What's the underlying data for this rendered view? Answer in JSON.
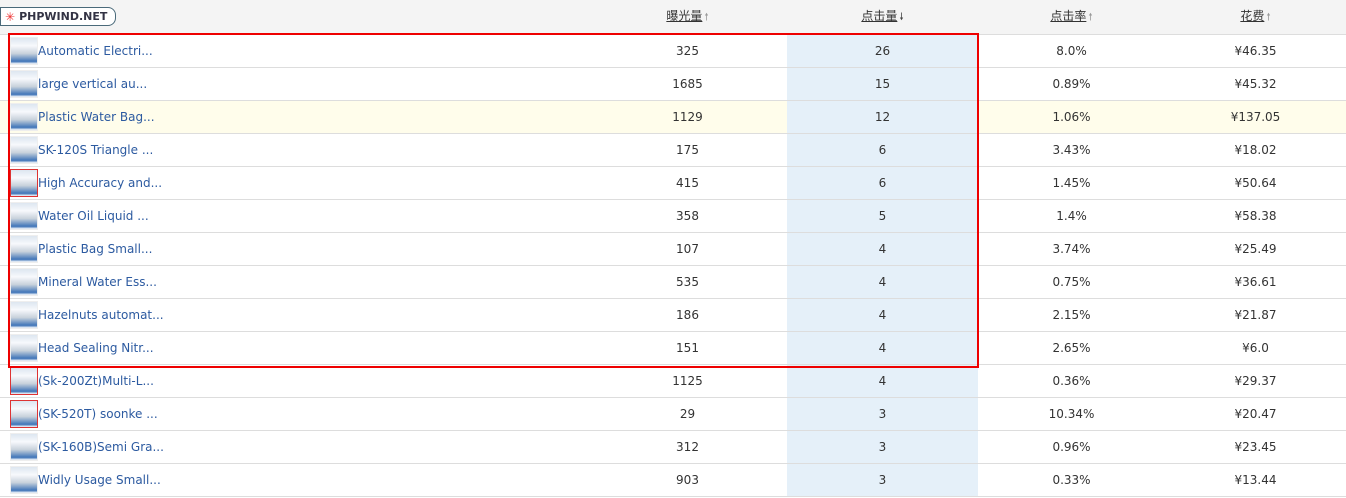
{
  "logo": {
    "text": "PHPWIND.NET",
    "icon": "asterisk-icon"
  },
  "headers": [
    {
      "label": "曝光量",
      "sort": "up"
    },
    {
      "label": "点击量",
      "sort": "down"
    },
    {
      "label": "点击率",
      "sort": "up"
    },
    {
      "label": "花费",
      "sort": "up"
    }
  ],
  "rows": [
    {
      "name": "Automatic Electri...",
      "imp": "325",
      "clicks": "26",
      "ctr": "8.0%",
      "cost": "¥46.35"
    },
    {
      "name": "large vertical au...",
      "imp": "1685",
      "clicks": "15",
      "ctr": "0.89%",
      "cost": "¥45.32"
    },
    {
      "name": "Plastic Water Bag...",
      "imp": "1129",
      "clicks": "12",
      "ctr": "1.06%",
      "cost": "¥137.05"
    },
    {
      "name": "SK-120S Triangle ...",
      "imp": "175",
      "clicks": "6",
      "ctr": "3.43%",
      "cost": "¥18.02"
    },
    {
      "name": "High Accuracy and...",
      "imp": "415",
      "clicks": "6",
      "ctr": "1.45%",
      "cost": "¥50.64"
    },
    {
      "name": "Water Oil Liquid ...",
      "imp": "358",
      "clicks": "5",
      "ctr": "1.4%",
      "cost": "¥58.38"
    },
    {
      "name": "Plastic Bag Small...",
      "imp": "107",
      "clicks": "4",
      "ctr": "3.74%",
      "cost": "¥25.49"
    },
    {
      "name": "Mineral Water Ess...",
      "imp": "535",
      "clicks": "4",
      "ctr": "0.75%",
      "cost": "¥36.61"
    },
    {
      "name": "Hazelnuts automat...",
      "imp": "186",
      "clicks": "4",
      "ctr": "2.15%",
      "cost": "¥21.87"
    },
    {
      "name": "Head Sealing Nitr...",
      "imp": "151",
      "clicks": "4",
      "ctr": "2.65%",
      "cost": "¥6.0"
    },
    {
      "name": "(Sk-200Zt)Multi-L...",
      "imp": "1125",
      "clicks": "4",
      "ctr": "0.36%",
      "cost": "¥29.37"
    },
    {
      "name": "(SK-520T) soonke ...",
      "imp": "29",
      "clicks": "3",
      "ctr": "10.34%",
      "cost": "¥20.47"
    },
    {
      "name": "(SK-160B)Semi Gra...",
      "imp": "312",
      "clicks": "3",
      "ctr": "0.96%",
      "cost": "¥23.45"
    },
    {
      "name": "Widly Usage Small...",
      "imp": "903",
      "clicks": "3",
      "ctr": "0.33%",
      "cost": "¥13.44"
    }
  ],
  "highlight_row": 2,
  "colors": {
    "link": "#2c5aa0",
    "sorted_column_bg": "#e5f0f9",
    "highlight_row_bg": "#fffdeb",
    "annotation_box": "#e00000"
  }
}
